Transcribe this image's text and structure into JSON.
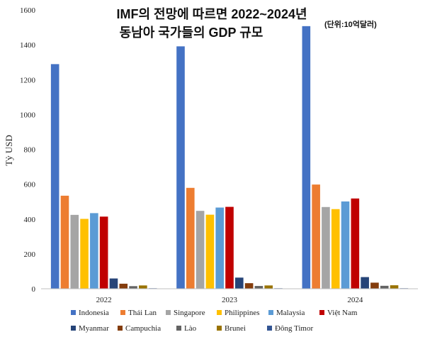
{
  "chart_data": {
    "type": "bar",
    "title_line1": "IMF의 전망에 따르면 2022~2024년",
    "title_line2": "동남아 국가들의 GDP 규모",
    "unit_note": "(단위:10억달러)",
    "ylabel": "Tỷ USD",
    "ylim": [
      0,
      1600
    ],
    "yticks": [
      0,
      200,
      400,
      600,
      800,
      1000,
      1200,
      1400,
      1600
    ],
    "categories": [
      "2022",
      "2023",
      "2024"
    ],
    "series": [
      {
        "name": "Indonesia",
        "color": "#4472C4",
        "values": [
          1289,
          1391,
          1507
        ]
      },
      {
        "name": "Thái Lan",
        "color": "#ED7D31",
        "values": [
          534,
          579,
          598
        ]
      },
      {
        "name": "Singapore",
        "color": "#A5A5A5",
        "values": [
          424,
          447,
          469
        ]
      },
      {
        "name": "Philippines",
        "color": "#FFC000",
        "values": [
          401,
          425,
          457
        ]
      },
      {
        "name": "Malaysia",
        "color": "#5B9BD5",
        "values": [
          434,
          466,
          501
        ]
      },
      {
        "name": "Việt Nam",
        "color": "#C00000",
        "values": [
          414,
          470,
          518
        ]
      },
      {
        "name": "Myanmar",
        "color": "#264478",
        "values": [
          59,
          64,
          67
        ]
      },
      {
        "name": "Campuchia",
        "color": "#843C0C",
        "values": [
          29,
          32,
          35
        ]
      },
      {
        "name": "Lào",
        "color": "#636363",
        "values": [
          15,
          16,
          17
        ]
      },
      {
        "name": "Brunei",
        "color": "#997300",
        "values": [
          19,
          19,
          20
        ]
      },
      {
        "name": "Đông Timor",
        "color": "#335593",
        "values": [
          3,
          3,
          3
        ]
      }
    ],
    "legend_position": "bottom",
    "grid": false
  }
}
